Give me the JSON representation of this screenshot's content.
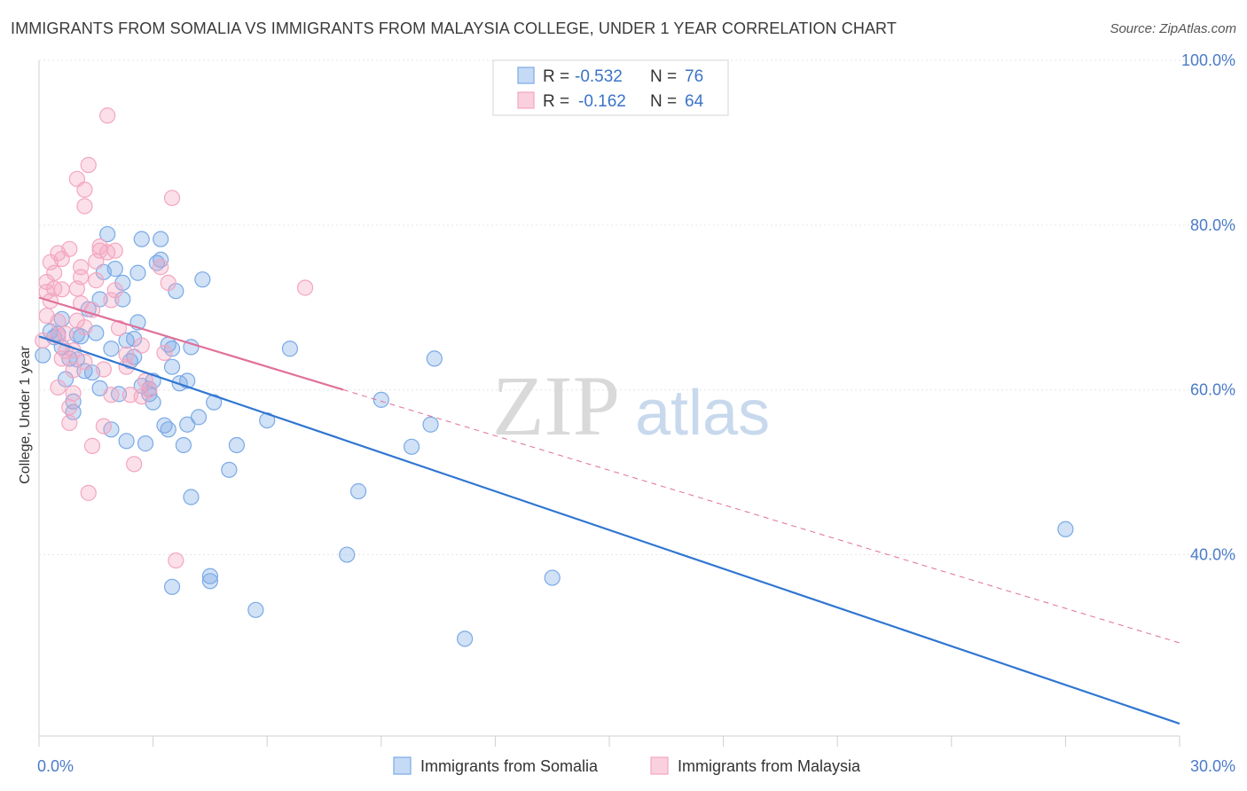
{
  "title": "IMMIGRANTS FROM SOMALIA VS IMMIGRANTS FROM MALAYSIA COLLEGE, UNDER 1 YEAR CORRELATION CHART",
  "source": "Source: ZipAtlas.com",
  "watermark": {
    "zip": "ZIP",
    "atlas": "atlas"
  },
  "chart_data": {
    "type": "scatter",
    "xlabel": "",
    "ylabel": "College, Under 1 year",
    "xlim": [
      0,
      30
    ],
    "ylim": [
      18,
      100
    ],
    "x_tick_labels": [
      {
        "value": 0,
        "label": "0.0%"
      },
      {
        "value": 30,
        "label": "30.0%"
      }
    ],
    "y_tick_labels": [
      {
        "value": 100,
        "label": "100.0%"
      },
      {
        "value": 80,
        "label": "80.0%"
      },
      {
        "value": 60,
        "label": "60.0%"
      },
      {
        "value": 40,
        "label": "40.0%"
      }
    ],
    "gridlines": [
      100,
      80,
      60,
      40
    ],
    "legend_top": [
      {
        "series": "somalia",
        "r_label": "R =",
        "r_value": "-0.532",
        "n_label": "N =",
        "n_value": "76"
      },
      {
        "series": "malaysia",
        "r_label": "R =",
        "r_value": "-0.162",
        "n_label": "N =",
        "n_value": "64"
      }
    ],
    "series": [
      {
        "name": "Immigrants from Somalia",
        "key": "somalia",
        "color": "#7aaae6",
        "line_color": "#2f76d1",
        "trend": {
          "x0": 0,
          "y0": 66.5,
          "x1": 30,
          "y1": 19.5,
          "dashed_from": null
        },
        "points": [
          [
            0.1,
            64.2
          ],
          [
            0.3,
            67.1
          ],
          [
            0.5,
            66.8
          ],
          [
            0.6,
            68.6
          ],
          [
            0.6,
            65.2
          ],
          [
            0.7,
            61.3
          ],
          [
            0.8,
            63.8
          ],
          [
            0.9,
            58.6
          ],
          [
            0.9,
            57.3
          ],
          [
            1.0,
            63.7
          ],
          [
            1.1,
            66.5
          ],
          [
            1.2,
            62.3
          ],
          [
            1.3,
            69.8
          ],
          [
            1.5,
            66.9
          ],
          [
            1.6,
            71.0
          ],
          [
            1.7,
            74.3
          ],
          [
            1.8,
            78.9
          ],
          [
            1.9,
            65.0
          ],
          [
            1.9,
            55.2
          ],
          [
            2.0,
            74.7
          ],
          [
            2.1,
            59.5
          ],
          [
            2.2,
            71.0
          ],
          [
            2.2,
            73.0
          ],
          [
            2.3,
            53.8
          ],
          [
            2.3,
            66.0
          ],
          [
            2.5,
            64.0
          ],
          [
            2.5,
            66.2
          ],
          [
            2.6,
            68.2
          ],
          [
            2.6,
            74.2
          ],
          [
            2.7,
            78.3
          ],
          [
            2.7,
            60.5
          ],
          [
            2.8,
            53.5
          ],
          [
            2.9,
            59.5
          ],
          [
            3.0,
            61.1
          ],
          [
            3.0,
            58.5
          ],
          [
            3.1,
            75.4
          ],
          [
            3.2,
            75.8
          ],
          [
            3.2,
            78.3
          ],
          [
            3.3,
            55.7
          ],
          [
            3.4,
            55.2
          ],
          [
            3.4,
            65.5
          ],
          [
            3.5,
            62.8
          ],
          [
            3.5,
            65.0
          ],
          [
            3.6,
            72.0
          ],
          [
            3.7,
            60.8
          ],
          [
            3.8,
            53.3
          ],
          [
            3.9,
            61.1
          ],
          [
            3.9,
            55.8
          ],
          [
            4.0,
            65.2
          ],
          [
            4.0,
            47.0
          ],
          [
            4.2,
            56.7
          ],
          [
            4.3,
            73.4
          ],
          [
            4.5,
            37.4
          ],
          [
            4.5,
            36.8
          ],
          [
            4.6,
            58.5
          ],
          [
            5.0,
            50.3
          ],
          [
            5.2,
            53.3
          ],
          [
            5.7,
            33.3
          ],
          [
            6.0,
            56.3
          ],
          [
            6.6,
            65.0
          ],
          [
            8.1,
            40.0
          ],
          [
            8.4,
            47.7
          ],
          [
            9.0,
            58.8
          ],
          [
            9.8,
            53.1
          ],
          [
            10.3,
            55.8
          ],
          [
            10.4,
            63.8
          ],
          [
            11.2,
            29.8
          ],
          [
            13.5,
            37.2
          ],
          [
            3.5,
            36.1
          ],
          [
            1.0,
            66.7
          ],
          [
            0.4,
            66.4
          ],
          [
            1.4,
            62.1
          ],
          [
            27.0,
            43.1
          ],
          [
            2.4,
            63.5
          ],
          [
            2.9,
            60.1
          ],
          [
            1.6,
            60.2
          ]
        ]
      },
      {
        "name": "Immigrants from Malaysia",
        "key": "malaysia",
        "color": "#f3a6c1",
        "line_color": "#e0709a",
        "trend": {
          "x0": 0,
          "y0": 71.2,
          "x1": 30,
          "y1": 29.3,
          "dashed_from": 8.0
        },
        "points": [
          [
            0.1,
            66.0
          ],
          [
            0.2,
            71.9
          ],
          [
            0.2,
            69.0
          ],
          [
            0.2,
            73.1
          ],
          [
            0.3,
            75.5
          ],
          [
            0.3,
            70.8
          ],
          [
            0.4,
            72.3
          ],
          [
            0.4,
            74.2
          ],
          [
            0.5,
            76.6
          ],
          [
            0.5,
            68.3
          ],
          [
            0.5,
            66.5
          ],
          [
            0.5,
            60.3
          ],
          [
            0.6,
            75.9
          ],
          [
            0.6,
            72.2
          ],
          [
            0.6,
            63.8
          ],
          [
            0.7,
            64.7
          ],
          [
            0.7,
            66.8
          ],
          [
            0.8,
            77.1
          ],
          [
            0.8,
            57.9
          ],
          [
            0.8,
            56.0
          ],
          [
            0.9,
            64.8
          ],
          [
            0.9,
            62.4
          ],
          [
            0.9,
            59.6
          ],
          [
            1.0,
            85.6
          ],
          [
            1.0,
            72.3
          ],
          [
            1.0,
            68.4
          ],
          [
            1.1,
            74.9
          ],
          [
            1.1,
            73.7
          ],
          [
            1.1,
            70.5
          ],
          [
            1.2,
            84.3
          ],
          [
            1.2,
            82.3
          ],
          [
            1.2,
            67.6
          ],
          [
            1.2,
            63.4
          ],
          [
            1.3,
            87.3
          ],
          [
            1.3,
            47.5
          ],
          [
            1.4,
            69.7
          ],
          [
            1.4,
            53.2
          ],
          [
            1.5,
            75.6
          ],
          [
            1.5,
            73.3
          ],
          [
            1.6,
            77.4
          ],
          [
            1.6,
            76.9
          ],
          [
            1.7,
            55.6
          ],
          [
            1.7,
            62.5
          ],
          [
            1.8,
            93.3
          ],
          [
            1.8,
            76.7
          ],
          [
            1.9,
            70.9
          ],
          [
            1.9,
            59.4
          ],
          [
            2.0,
            76.9
          ],
          [
            2.0,
            72.1
          ],
          [
            2.1,
            67.5
          ],
          [
            2.3,
            64.3
          ],
          [
            2.3,
            62.8
          ],
          [
            2.4,
            59.4
          ],
          [
            2.5,
            51.0
          ],
          [
            2.7,
            65.4
          ],
          [
            2.7,
            59.2
          ],
          [
            2.8,
            61.1
          ],
          [
            2.9,
            60.0
          ],
          [
            3.2,
            74.9
          ],
          [
            3.3,
            64.5
          ],
          [
            3.5,
            83.3
          ],
          [
            3.6,
            39.3
          ],
          [
            7.0,
            72.4
          ],
          [
            3.4,
            73.0
          ]
        ]
      }
    ]
  },
  "legend_bottom": [
    {
      "key": "somalia",
      "label": "Immigrants from Somalia",
      "color": "#7aaae6"
    },
    {
      "key": "malaysia",
      "label": "Immigrants from Malaysia",
      "color": "#f3a6c1"
    }
  ]
}
